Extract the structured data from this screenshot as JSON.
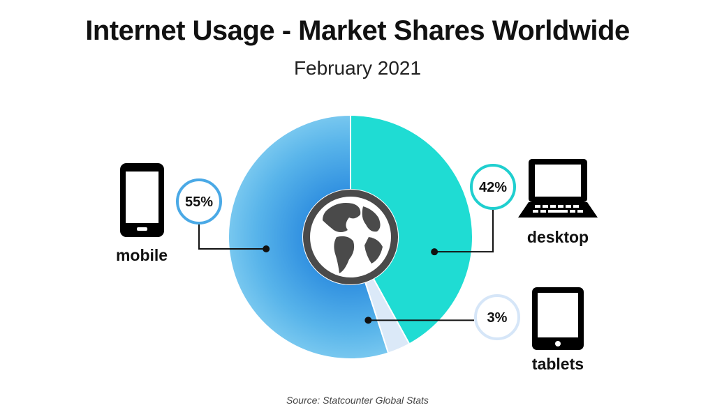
{
  "title": "Internet Usage - Market Shares Worldwide",
  "subtitle": "February 2021",
  "source": "Source: Statcounter Global Stats",
  "chart_data": {
    "type": "pie",
    "style": "donut",
    "legend": "none",
    "slices": [
      {
        "name": "mobile",
        "value": 55,
        "label": "55%",
        "color": "#5bb8ea",
        "ring_color": "#4aa9e6",
        "icon": "smartphone-icon"
      },
      {
        "name": "desktop",
        "value": 42,
        "label": "42%",
        "color": "#1fdcd3",
        "ring_color": "#1fcfcf",
        "icon": "laptop-icon"
      },
      {
        "name": "tablets",
        "value": 3,
        "label": "3%",
        "color": "#dbe9f8",
        "ring_color": "#d6e6f8",
        "icon": "tablet-icon"
      }
    ],
    "center_icon": "globe-icon"
  }
}
